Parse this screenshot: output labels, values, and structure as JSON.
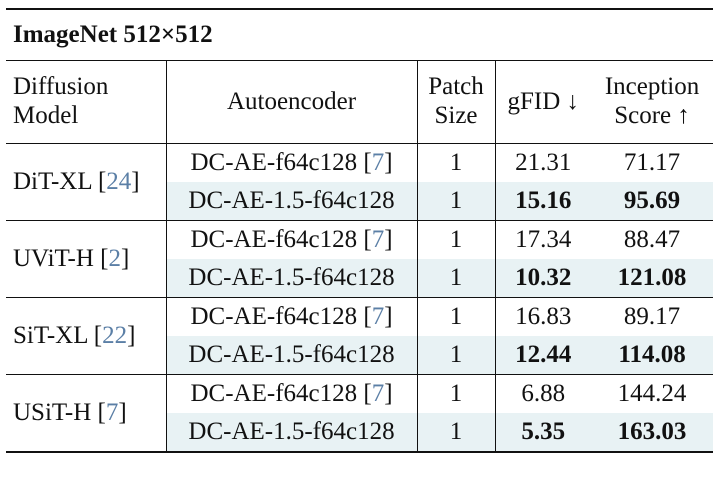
{
  "table": {
    "title": "ImageNet 512×512",
    "headers": {
      "model_line1": "Diffusion",
      "model_line2": "Model",
      "autoencoder": "Autoencoder",
      "patch_line1": "Patch",
      "patch_line2": "Size",
      "gfid": "gFID ↓",
      "is_line1": "Inception",
      "is_line2": "Score ↑"
    },
    "groups": [
      {
        "model": "DiT-XL [",
        "model_ref": "24",
        "model_close": "]",
        "rows": [
          {
            "ae": "DC-AE-f64c128 [",
            "ae_ref": "7",
            "ae_close": "]",
            "patch": "1",
            "gfid": "21.31",
            "is": "71.17"
          },
          {
            "ae": "DC-AE-1.5-f64c128",
            "patch": "1",
            "gfid": "15.16",
            "is": "95.69"
          }
        ]
      },
      {
        "model": "UViT-H [",
        "model_ref": "2",
        "model_close": "]",
        "rows": [
          {
            "ae": "DC-AE-f64c128 [",
            "ae_ref": "7",
            "ae_close": "]",
            "patch": "1",
            "gfid": "17.34",
            "is": "88.47"
          },
          {
            "ae": "DC-AE-1.5-f64c128",
            "patch": "1",
            "gfid": "10.32",
            "is": "121.08"
          }
        ]
      },
      {
        "model": "SiT-XL [",
        "model_ref": "22",
        "model_close": "]",
        "rows": [
          {
            "ae": "DC-AE-f64c128 [",
            "ae_ref": "7",
            "ae_close": "]",
            "patch": "1",
            "gfid": "16.83",
            "is": "89.17"
          },
          {
            "ae": "DC-AE-1.5-f64c128",
            "patch": "1",
            "gfid": "12.44",
            "is": "114.08"
          }
        ]
      },
      {
        "model": "USiT-H [",
        "model_ref": "7",
        "model_close": "]",
        "rows": [
          {
            "ae": "DC-AE-f64c128 [",
            "ae_ref": "7",
            "ae_close": "]",
            "patch": "1",
            "gfid": "6.88",
            "is": "144.24"
          },
          {
            "ae": "DC-AE-1.5-f64c128",
            "patch": "1",
            "gfid": "5.35",
            "is": "163.03"
          }
        ]
      }
    ]
  }
}
